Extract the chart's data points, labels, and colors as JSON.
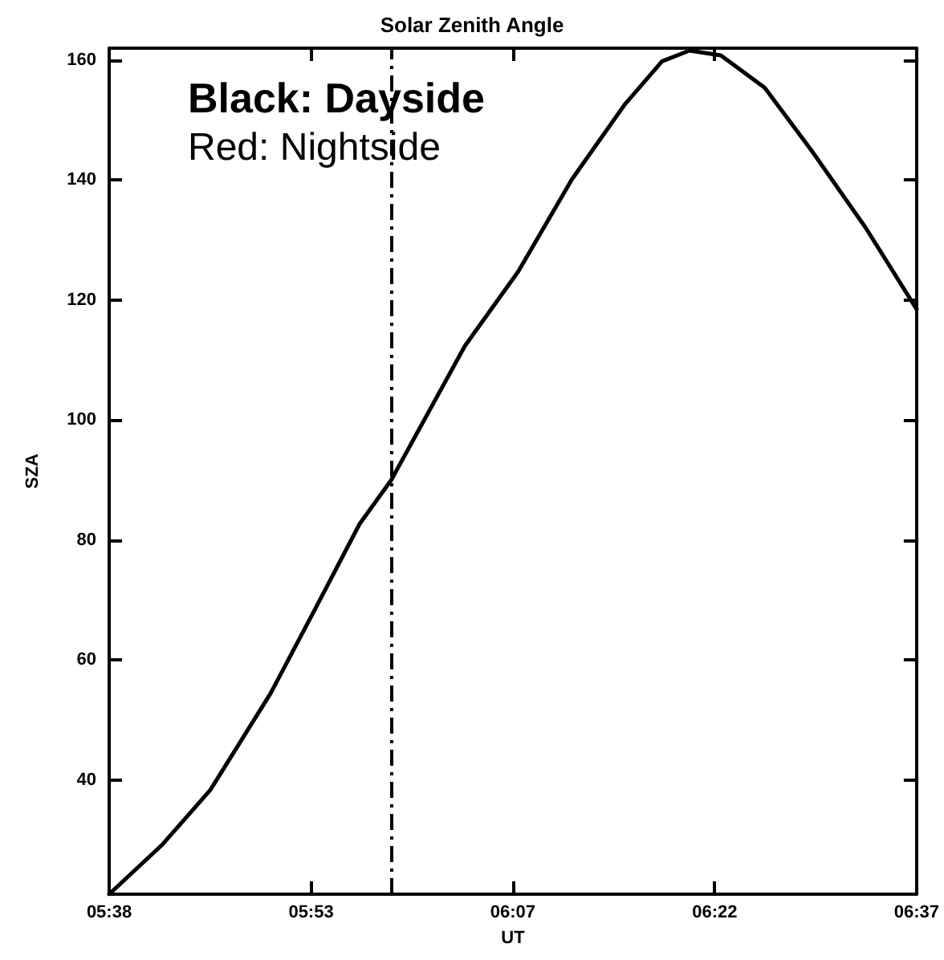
{
  "chart_data": {
    "type": "line",
    "title": "Solar Zenith Angle",
    "xlabel": "UT",
    "ylabel": "SZA",
    "annotations": [
      "Black: Dayside",
      "Red: Nightside"
    ],
    "x": [
      5.6333,
      5.6983,
      5.7567,
      5.83,
      5.8883,
      5.9383,
      5.9767,
      6.0667,
      6.1317,
      6.1967,
      6.2617,
      6.3067,
      6.34,
      6.3783,
      6.4317,
      6.49,
      6.555,
      6.6167
    ],
    "series": [
      {
        "color": "#000000",
        "values": [
          21,
          29.3,
          38.4,
          54.5,
          69.6,
          82.7,
          90,
          112.4,
          124.8,
          140.1,
          152.7,
          159.8,
          161.6,
          160.8,
          155.4,
          144.7,
          132,
          118.5
        ]
      }
    ],
    "xlim": [
      5.6333,
      6.6167
    ],
    "xticks": [
      {
        "value": 5.6333,
        "label": "05:38"
      },
      {
        "value": 5.8792,
        "label": "05:53"
      },
      {
        "value": 6.125,
        "label": "06:07"
      },
      {
        "value": 6.3708,
        "label": "06:22"
      },
      {
        "value": 6.6167,
        "label": "06:37"
      }
    ],
    "ylim": [
      21,
      162
    ],
    "yticks": [
      40,
      60,
      80,
      100,
      120,
      140,
      160
    ],
    "ref_lines": [
      {
        "axis": "x",
        "value": 5.9767,
        "line_style": "dashed",
        "color": "#000000"
      }
    ],
    "grid": false,
    "marker": "none",
    "line_style": "solid"
  }
}
